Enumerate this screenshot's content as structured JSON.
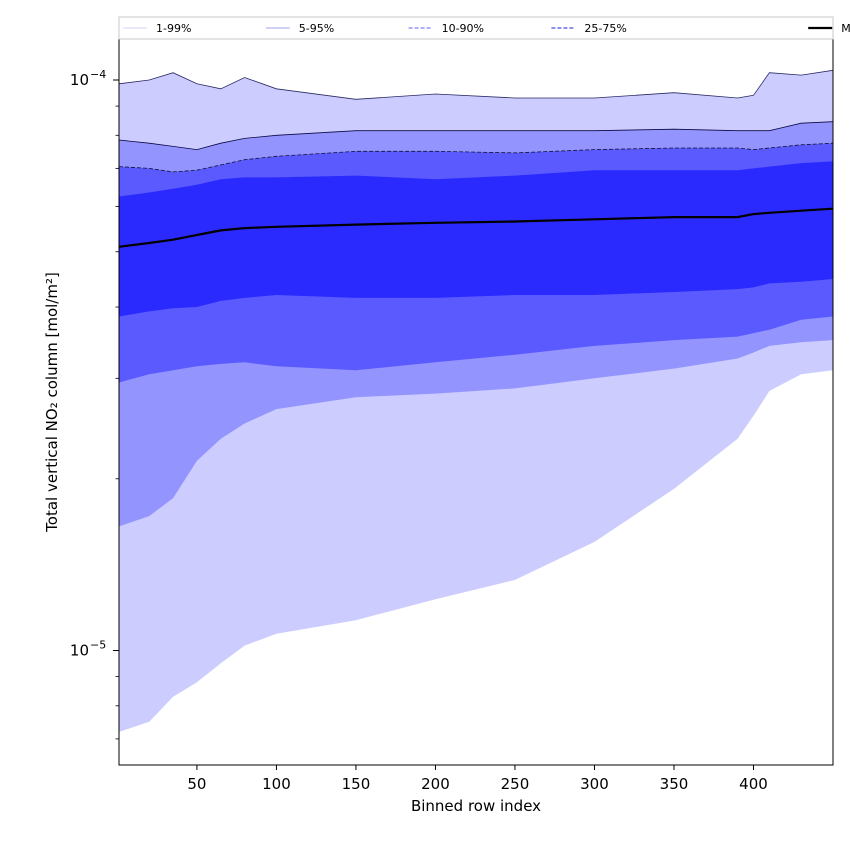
{
  "chart_data": {
    "type": "area",
    "xlabel": "Binned row index",
    "ylabel": "Total vertical NO₂ column [mol/m²]",
    "xlim": [
      1,
      450
    ],
    "ylim": [
      6.3e-06,
      0.000118
    ],
    "yscale": "log",
    "xticks": [
      50,
      100,
      150,
      200,
      250,
      300,
      350,
      400
    ],
    "yticks": [
      {
        "value": 1e-05,
        "base": "10",
        "exp": "−5"
      },
      {
        "value": 0.0001,
        "base": "10",
        "exp": "−4"
      }
    ],
    "legend": {
      "placement": "top",
      "entries": [
        {
          "label": "1-99%",
          "color": "#dcdcf5",
          "style": "solid"
        },
        {
          "label": "5-95%",
          "color": "#b4b4ee",
          "style": "solid"
        },
        {
          "label": "10-90%",
          "color": "#8080f0",
          "style": "dashed"
        },
        {
          "label": "25-75%",
          "color": "#4a4aee",
          "style": "dashed"
        },
        {
          "label": "Median",
          "color": "#000000",
          "style": "solid"
        }
      ]
    },
    "x": [
      1,
      20,
      35,
      50,
      65,
      80,
      100,
      150,
      200,
      250,
      300,
      350,
      390,
      400,
      410,
      430,
      450
    ],
    "series": [
      {
        "name": "1-99%",
        "color": "#ccccff",
        "upper": [
          9.85e-05,
          0.0001,
          0.000103,
          9.85e-05,
          9.65e-05,
          0.000101,
          9.65e-05,
          9.25e-05,
          9.45e-05,
          9.3e-05,
          9.3e-05,
          9.5e-05,
          9.3e-05,
          9.4e-05,
          0.000103,
          0.000102,
          0.000104
        ],
        "lower": [
          7.2e-06,
          7.5e-06,
          8.3e-06,
          8.8e-06,
          9.5e-06,
          1.02e-05,
          1.07e-05,
          1.13e-05,
          1.23e-05,
          1.33e-05,
          1.55e-05,
          1.92e-05,
          2.35e-05,
          2.58e-05,
          2.85e-05,
          3.05e-05,
          3.1e-05
        ]
      },
      {
        "name": "5-95%",
        "color": "#9494ff",
        "upper": [
          7.85e-05,
          7.75e-05,
          7.65e-05,
          7.55e-05,
          7.75e-05,
          7.9e-05,
          8e-05,
          8.15e-05,
          8.15e-05,
          8.15e-05,
          8.15e-05,
          8.2e-05,
          8.15e-05,
          8.15e-05,
          8.15e-05,
          8.4e-05,
          8.45e-05
        ],
        "lower": [
          1.65e-05,
          1.72e-05,
          1.85e-05,
          2.15e-05,
          2.35e-05,
          2.5e-05,
          2.65e-05,
          2.78e-05,
          2.82e-05,
          2.88e-05,
          3e-05,
          3.12e-05,
          3.25e-05,
          3.33e-05,
          3.42e-05,
          3.47e-05,
          3.5e-05
        ]
      },
      {
        "name": "10-90%",
        "color": "#5a5aff",
        "upper": [
          7.05e-05,
          7e-05,
          6.9e-05,
          6.95e-05,
          7.1e-05,
          7.25e-05,
          7.35e-05,
          7.5e-05,
          7.5e-05,
          7.45e-05,
          7.55e-05,
          7.6e-05,
          7.6e-05,
          7.55e-05,
          7.6e-05,
          7.7e-05,
          7.75e-05
        ],
        "lower": [
          2.95e-05,
          3.05e-05,
          3.1e-05,
          3.15e-05,
          3.18e-05,
          3.2e-05,
          3.15e-05,
          3.1e-05,
          3.2e-05,
          3.3e-05,
          3.42e-05,
          3.5e-05,
          3.55e-05,
          3.6e-05,
          3.65e-05,
          3.8e-05,
          3.85e-05
        ]
      },
      {
        "name": "25-75%",
        "color": "#2a2aff",
        "upper": [
          6.25e-05,
          6.35e-05,
          6.45e-05,
          6.55e-05,
          6.7e-05,
          6.75e-05,
          6.75e-05,
          6.8e-05,
          6.7e-05,
          6.8e-05,
          6.95e-05,
          6.95e-05,
          6.95e-05,
          7e-05,
          7.05e-05,
          7.15e-05,
          7.2e-05
        ],
        "lower": [
          3.85e-05,
          3.93e-05,
          3.98e-05,
          4e-05,
          4.1e-05,
          4.15e-05,
          4.2e-05,
          4.15e-05,
          4.15e-05,
          4.2e-05,
          4.2e-05,
          4.25e-05,
          4.3e-05,
          4.33e-05,
          4.4e-05,
          4.43e-05,
          4.48e-05
        ]
      },
      {
        "name": "Median",
        "color": "#000000",
        "values": [
          5.1e-05,
          5.18e-05,
          5.25e-05,
          5.35e-05,
          5.45e-05,
          5.5e-05,
          5.53e-05,
          5.58e-05,
          5.62e-05,
          5.65e-05,
          5.7e-05,
          5.75e-05,
          5.75e-05,
          5.82e-05,
          5.85e-05,
          5.9e-05,
          5.95e-05
        ]
      }
    ]
  }
}
